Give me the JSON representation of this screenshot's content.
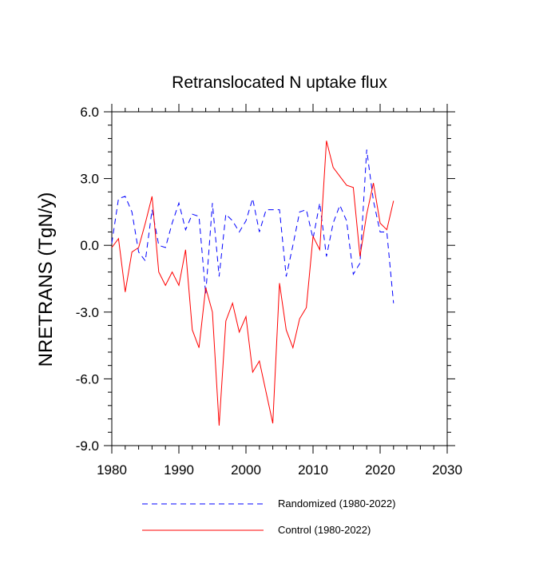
{
  "chart_data": {
    "type": "line",
    "title": "Retranslocated N uptake flux",
    "xlabel": "",
    "ylabel": "NRETRANS  (TgN/y)",
    "xlim": [
      1980,
      2030
    ],
    "ylim": [
      -9.0,
      6.0
    ],
    "x_ticks": [
      "1980",
      "1990",
      "2000",
      "2010",
      "2020",
      "2030"
    ],
    "y_ticks": [
      "6.0",
      "3.0",
      "0.0",
      "-3.0",
      "-6.0",
      "-9.0"
    ],
    "x": [
      1980,
      1981,
      1982,
      1983,
      1984,
      1985,
      1986,
      1987,
      1988,
      1989,
      1990,
      1991,
      1992,
      1993,
      1994,
      1995,
      1996,
      1997,
      1998,
      1999,
      2000,
      2001,
      2002,
      2003,
      2004,
      2005,
      2006,
      2007,
      2008,
      2009,
      2010,
      2011,
      2012,
      2013,
      2014,
      2015,
      2016,
      2017,
      2018,
      2019,
      2020,
      2021,
      2022
    ],
    "series": [
      {
        "name": "Randomized (1980-2022)",
        "color": "#0000ff",
        "dash": "dashed",
        "values": [
          0.1,
          2.1,
          2.2,
          1.5,
          -0.3,
          -0.7,
          1.6,
          0.0,
          -0.1,
          1.0,
          1.9,
          0.7,
          1.4,
          1.3,
          -2.2,
          1.9,
          -1.4,
          1.4,
          1.1,
          0.6,
          1.1,
          2.1,
          0.6,
          1.6,
          1.6,
          1.6,
          -1.4,
          0.0,
          1.5,
          1.6,
          0.3,
          1.9,
          -0.5,
          1.0,
          1.8,
          1.1,
          -1.3,
          -0.8,
          4.3,
          2.0,
          0.6,
          0.6,
          -2.6
        ]
      },
      {
        "name": "Control (1980-2022)",
        "color": "#ff0000",
        "dash": "solid",
        "values": [
          -0.1,
          0.3,
          -2.1,
          -0.3,
          -0.1,
          1.0,
          2.2,
          -1.2,
          -1.8,
          -1.2,
          -1.8,
          -0.2,
          -3.8,
          -4.6,
          -1.9,
          -3.0,
          -8.1,
          -3.4,
          -2.6,
          -3.9,
          -3.2,
          -5.7,
          -5.2,
          -6.6,
          -8.0,
          -1.7,
          -3.8,
          -4.6,
          -3.3,
          -2.8,
          0.4,
          -0.2,
          4.7,
          3.5,
          3.1,
          2.7,
          2.6,
          -0.5,
          1.4,
          2.8,
          1.0,
          0.7,
          2.0
        ]
      }
    ],
    "legend": [
      "Randomized (1980-2022)",
      "Control (1980-2022)"
    ]
  }
}
